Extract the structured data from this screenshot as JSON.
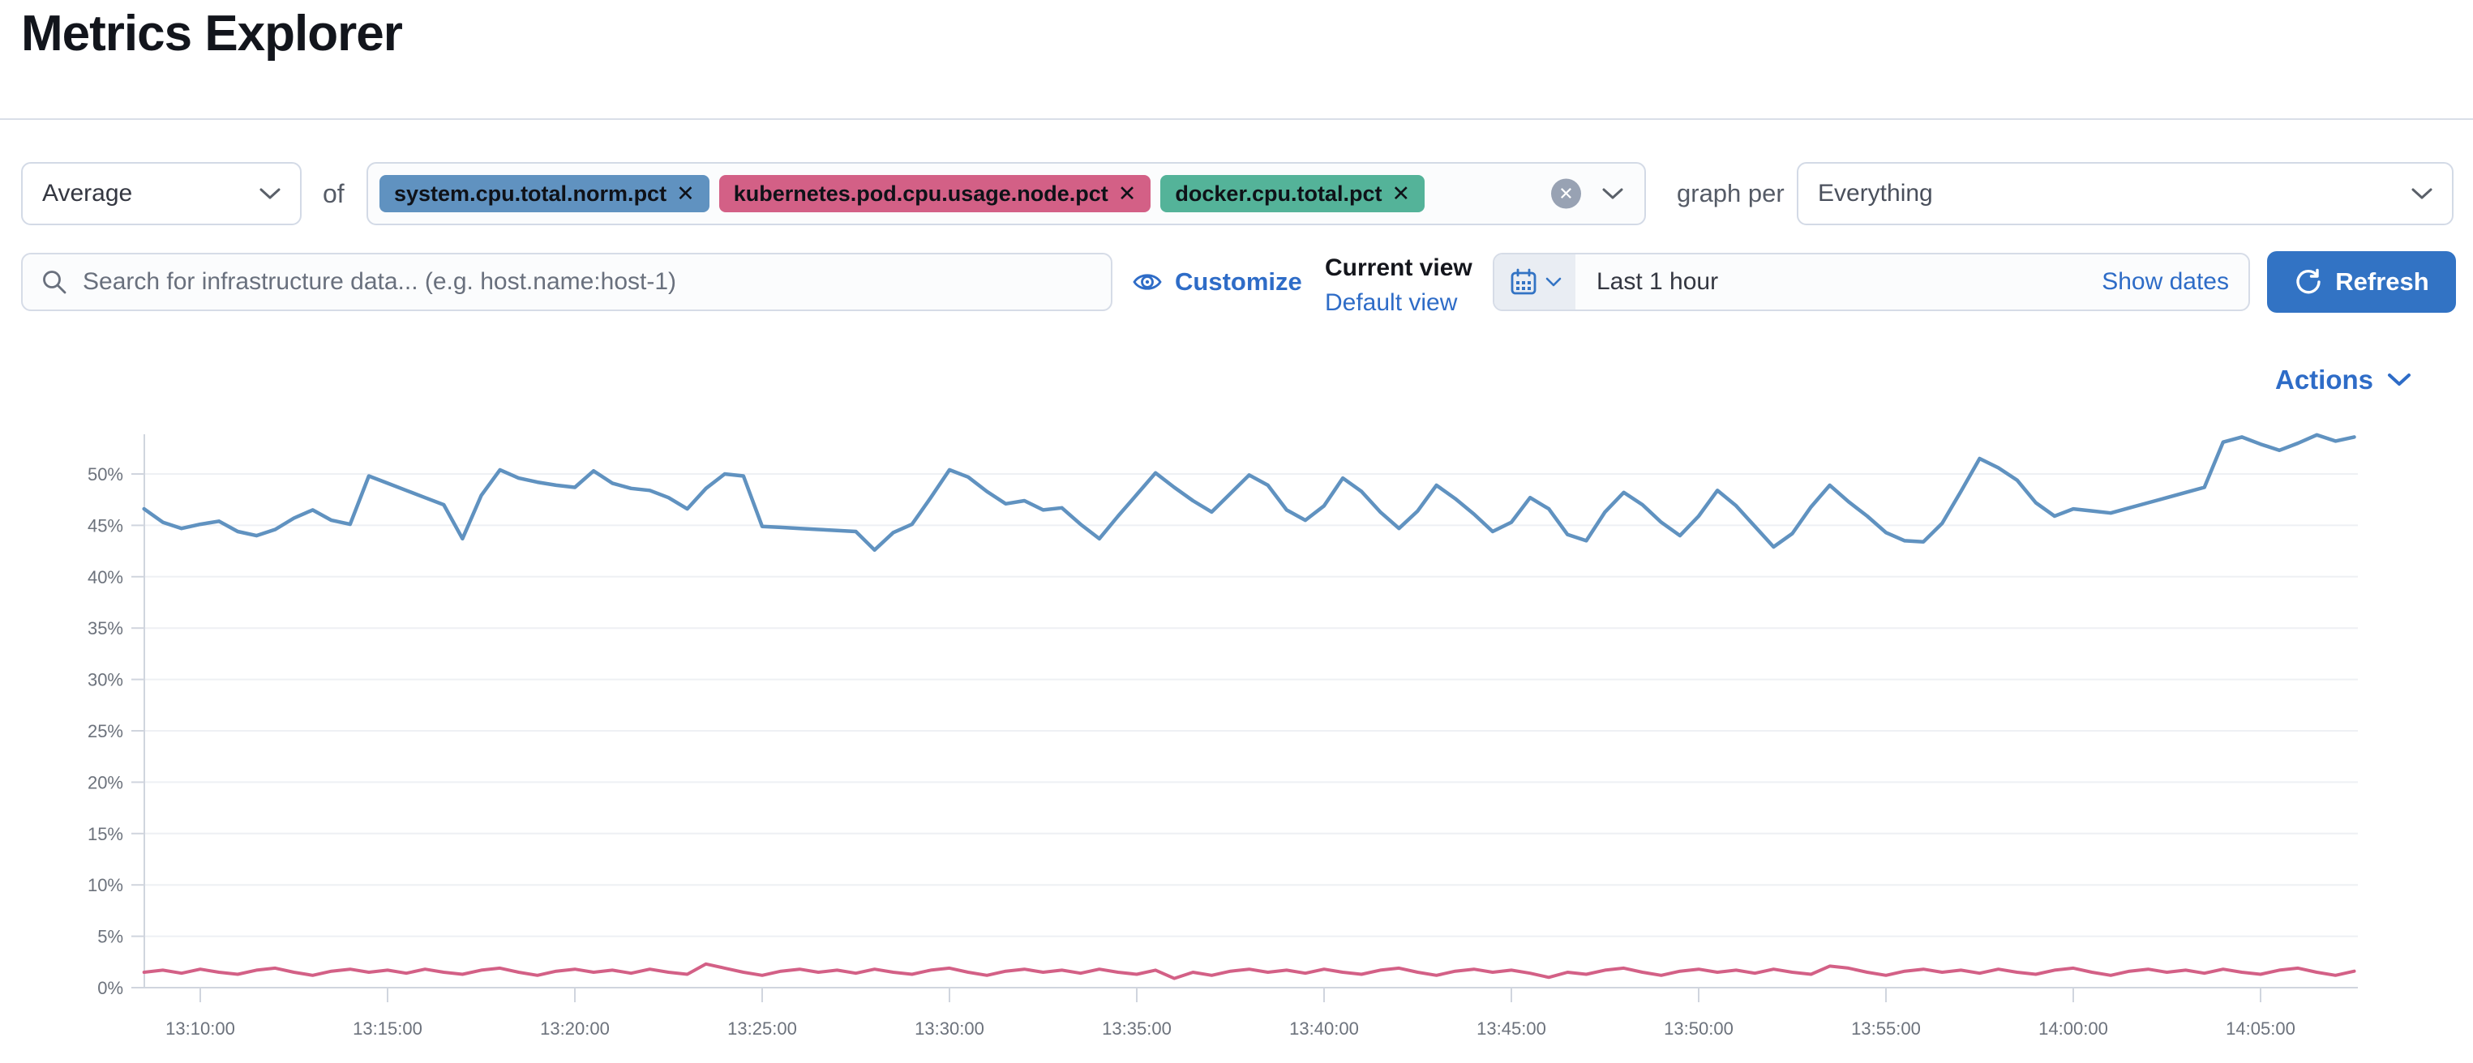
{
  "page": {
    "title": "Metrics Explorer"
  },
  "colors": {
    "link_blue": "#2e6cc7",
    "button_blue": "#3273c4",
    "pill_blue": "#6092C0",
    "pill_pink": "#D36086",
    "pill_green": "#54B399"
  },
  "toolbar": {
    "aggregation": {
      "value": "Average"
    },
    "of_label": "of",
    "metrics": [
      {
        "label": "system.cpu.total.norm.pct",
        "color": "#6092C0",
        "remove_glyph": "✕"
      },
      {
        "label": "kubernetes.pod.cpu.usage.node.pct",
        "color": "#D36086",
        "remove_glyph": "✕"
      },
      {
        "label": "docker.cpu.total.pct",
        "color": "#54B399",
        "remove_glyph": "✕"
      }
    ],
    "clear_glyph": "✕",
    "graph_per_label": "graph per",
    "group_by": {
      "value": "Everything"
    }
  },
  "filter_bar": {
    "search": {
      "value": "",
      "placeholder": "Search for infrastructure data... (e.g. host.name:host-1)"
    },
    "customize_label": "Customize",
    "view_picker": {
      "current_label": "Current view",
      "selected_view": "Default view"
    },
    "time_picker": {
      "value": "Last 1 hour",
      "show_dates_label": "Show dates"
    },
    "refresh_label": "Refresh"
  },
  "chart_header": {
    "actions_label": "Actions"
  },
  "chart_data": {
    "type": "line",
    "title": "",
    "xlabel": "",
    "ylabel": "",
    "grid": true,
    "legend": false,
    "y_axis": {
      "min": 0,
      "max": 55,
      "tick_step": 5,
      "tick_labels": [
        "0%",
        "5%",
        "10%",
        "15%",
        "20%",
        "25%",
        "30%",
        "35%",
        "40%",
        "45%",
        "50%"
      ]
    },
    "x_axis": {
      "start_minutes_after_13": 8.5,
      "step_minutes": 0.5,
      "tick_times_minutes": [
        10,
        15,
        20,
        25,
        30,
        35,
        40,
        45,
        50,
        55,
        60,
        65
      ],
      "tick_labels": [
        "13:10:00",
        "13:15:00",
        "13:20:00",
        "13:25:00",
        "13:30:00",
        "13:35:00",
        "13:40:00",
        "13:45:00",
        "13:50:00",
        "13:55:00",
        "14:00:00",
        "14:05:00"
      ]
    },
    "series": [
      {
        "name": "system.cpu.total.norm.pct",
        "unit": "%",
        "color": "#6092C0",
        "values": [
          46.6,
          45.3,
          44.7,
          45.1,
          45.4,
          44.4,
          44.0,
          44.6,
          45.7,
          46.5,
          45.5,
          45.1,
          49.8,
          49.1,
          48.4,
          47.7,
          47.0,
          43.7,
          47.9,
          50.4,
          49.6,
          49.2,
          48.9,
          48.7,
          50.3,
          49.1,
          48.6,
          48.4,
          47.7,
          46.6,
          48.6,
          50.0,
          49.8,
          44.9,
          44.8,
          44.7,
          44.6,
          44.5,
          44.4,
          42.6,
          44.3,
          45.1,
          47.7,
          50.4,
          49.7,
          48.3,
          47.1,
          47.4,
          46.5,
          46.7,
          45.1,
          43.7,
          45.9,
          48.0,
          50.1,
          48.7,
          47.4,
          46.3,
          48.1,
          49.9,
          48.9,
          46.5,
          45.5,
          46.9,
          49.6,
          48.3,
          46.3,
          44.7,
          46.4,
          48.9,
          47.6,
          46.1,
          44.4,
          45.3,
          47.7,
          46.6,
          44.1,
          43.5,
          46.3,
          48.2,
          47.0,
          45.3,
          44.0,
          45.9,
          48.4,
          46.9,
          44.9,
          42.9,
          44.2,
          46.8,
          48.9,
          47.3,
          45.9,
          44.3,
          43.5,
          43.4,
          45.2,
          48.3,
          51.5,
          50.6,
          49.4,
          47.2,
          45.9,
          46.6,
          46.4,
          46.2,
          46.7,
          47.2,
          47.7,
          48.2,
          48.7,
          53.1,
          53.6,
          52.9,
          52.3,
          53.0,
          53.8,
          53.2,
          53.6
        ]
      },
      {
        "name": "kubernetes.pod.cpu.usage.node.pct",
        "unit": "%",
        "color": "#D36086",
        "values": [
          1.5,
          1.7,
          1.4,
          1.8,
          1.5,
          1.3,
          1.7,
          1.9,
          1.5,
          1.2,
          1.6,
          1.8,
          1.5,
          1.7,
          1.4,
          1.8,
          1.5,
          1.3,
          1.7,
          1.9,
          1.5,
          1.2,
          1.6,
          1.8,
          1.5,
          1.7,
          1.4,
          1.8,
          1.5,
          1.3,
          2.3,
          1.9,
          1.5,
          1.2,
          1.6,
          1.8,
          1.5,
          1.7,
          1.4,
          1.8,
          1.5,
          1.3,
          1.7,
          1.9,
          1.5,
          1.2,
          1.6,
          1.8,
          1.5,
          1.7,
          1.4,
          1.8,
          1.5,
          1.3,
          1.7,
          0.9,
          1.5,
          1.2,
          1.6,
          1.8,
          1.5,
          1.7,
          1.4,
          1.8,
          1.5,
          1.3,
          1.7,
          1.9,
          1.5,
          1.2,
          1.6,
          1.8,
          1.5,
          1.7,
          1.4,
          1.0,
          1.5,
          1.3,
          1.7,
          1.9,
          1.5,
          1.2,
          1.6,
          1.8,
          1.5,
          1.7,
          1.4,
          1.8,
          1.5,
          1.3,
          2.1,
          1.9,
          1.5,
          1.2,
          1.6,
          1.8,
          1.5,
          1.7,
          1.4,
          1.8,
          1.5,
          1.3,
          1.7,
          1.9,
          1.5,
          1.2,
          1.6,
          1.8,
          1.5,
          1.7,
          1.4,
          1.8,
          1.5,
          1.3,
          1.7,
          1.9,
          1.5,
          1.2,
          1.6
        ]
      }
    ]
  }
}
